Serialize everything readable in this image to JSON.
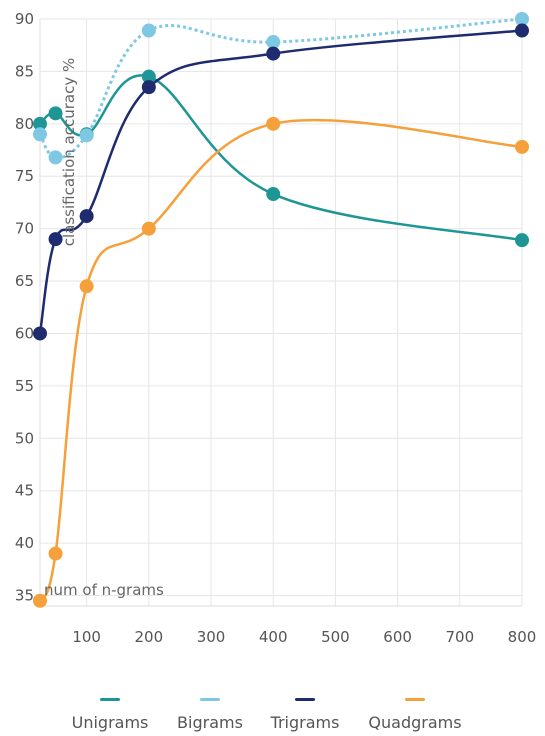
{
  "chart_data": {
    "type": "line",
    "xlabel": "num of n-grams",
    "ylabel": "classification accuracy %",
    "xlim": [
      25,
      800
    ],
    "ylim": [
      34,
      90
    ],
    "xticks": [
      100,
      200,
      300,
      400,
      500,
      600,
      700,
      800
    ],
    "yticks": [
      35,
      40,
      45,
      50,
      55,
      60,
      65,
      70,
      75,
      80,
      85,
      90
    ],
    "grid": true,
    "legend_position": "bottom",
    "series": [
      {
        "name": "Unigrams",
        "color": "#1f9696",
        "dashed": false,
        "x": [
          25,
          50,
          100,
          200,
          400,
          800
        ],
        "y": [
          80,
          81,
          79,
          84.5,
          73.3,
          68.9
        ]
      },
      {
        "name": "Bigrams",
        "color": "#7ec8e3",
        "dashed": true,
        "x": [
          25,
          50,
          100,
          200,
          400,
          800
        ],
        "y": [
          79,
          76.8,
          78.9,
          88.9,
          87.8,
          90
        ]
      },
      {
        "name": "Trigrams",
        "color": "#1e2b6e",
        "dashed": false,
        "x": [
          25,
          50,
          100,
          200,
          400,
          800
        ],
        "y": [
          60,
          69,
          71.2,
          83.5,
          86.7,
          88.9
        ]
      },
      {
        "name": "Quadgrams",
        "color": "#f5a03a",
        "dashed": false,
        "x": [
          25,
          50,
          100,
          200,
          400,
          800
        ],
        "y": [
          34.5,
          39,
          64.5,
          70,
          80,
          77.8
        ]
      }
    ]
  }
}
